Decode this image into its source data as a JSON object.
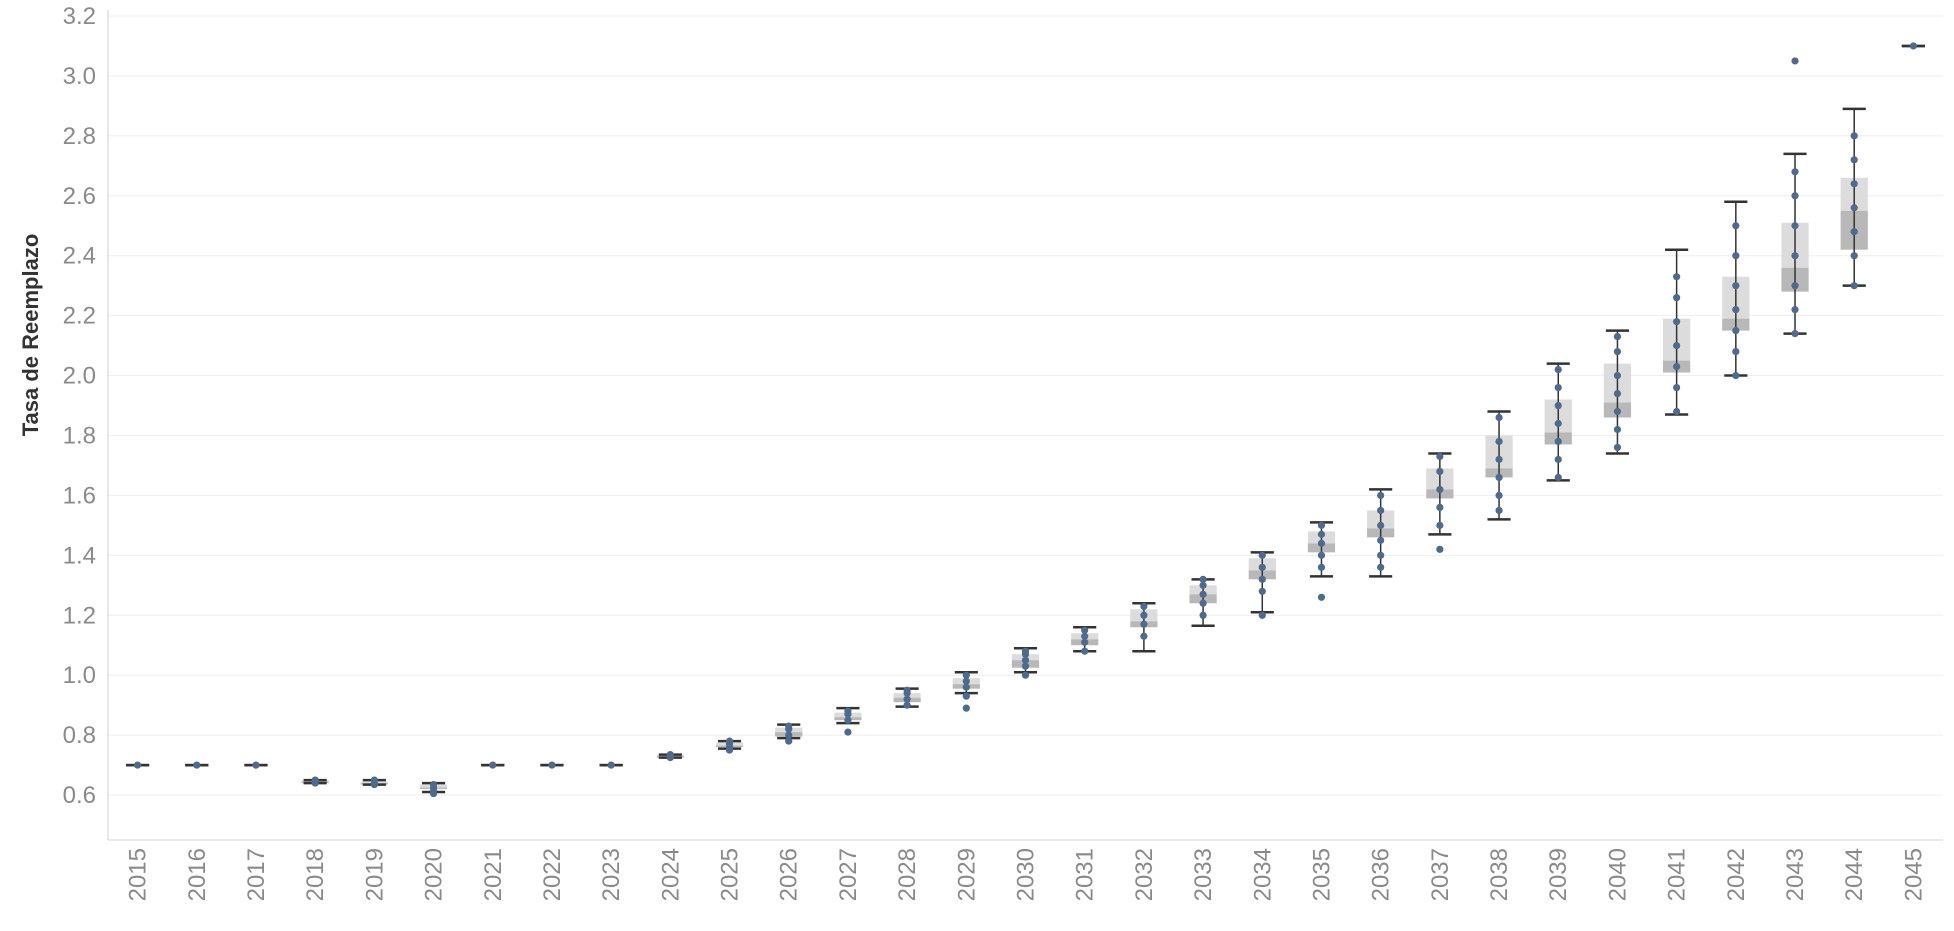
{
  "chart_data": {
    "type": "box",
    "xlabel": "",
    "ylabel": "Tasa de Reemplazo",
    "ylim": [
      0.45,
      3.22
    ],
    "yticks": [
      0.6,
      0.8,
      1.0,
      1.2,
      1.4,
      1.6,
      1.8,
      2.0,
      2.2,
      2.4,
      2.6,
      2.8,
      3.0,
      3.2
    ],
    "ytick_labels": [
      "0.6",
      "0.8",
      "1.0",
      "1.2",
      "1.4",
      "1.6",
      "1.8",
      "2.0",
      "2.2",
      "2.4",
      "2.6",
      "2.8",
      "3.0",
      "3.2"
    ],
    "categories": [
      "2015",
      "2016",
      "2017",
      "2018",
      "2019",
      "2020",
      "2021",
      "2022",
      "2023",
      "2024",
      "2025",
      "2026",
      "2027",
      "2028",
      "2029",
      "2030",
      "2031",
      "2032",
      "2033",
      "2034",
      "2035",
      "2036",
      "2037",
      "2038",
      "2039",
      "2040",
      "2041",
      "2042",
      "2043",
      "2044",
      "2045"
    ],
    "boxes": [
      {
        "year": "2015",
        "min": 0.7,
        "q1": 0.7,
        "median": 0.7,
        "q3": 0.7,
        "max": 0.7,
        "points": [
          0.7
        ]
      },
      {
        "year": "2016",
        "min": 0.7,
        "q1": 0.7,
        "median": 0.7,
        "q3": 0.7,
        "max": 0.7,
        "points": [
          0.7
        ]
      },
      {
        "year": "2017",
        "min": 0.7,
        "q1": 0.7,
        "median": 0.7,
        "q3": 0.7,
        "max": 0.7,
        "points": [
          0.7
        ]
      },
      {
        "year": "2018",
        "min": 0.64,
        "q1": 0.64,
        "median": 0.645,
        "q3": 0.65,
        "max": 0.65,
        "points": [
          0.64,
          0.645,
          0.65
        ]
      },
      {
        "year": "2019",
        "min": 0.635,
        "q1": 0.635,
        "median": 0.64,
        "q3": 0.645,
        "max": 0.65,
        "points": [
          0.635,
          0.64,
          0.65
        ]
      },
      {
        "year": "2020",
        "min": 0.61,
        "q1": 0.62,
        "median": 0.625,
        "q3": 0.635,
        "max": 0.64,
        "points": [
          0.605,
          0.615,
          0.625,
          0.635
        ]
      },
      {
        "year": "2021",
        "min": 0.7,
        "q1": 0.7,
        "median": 0.7,
        "q3": 0.7,
        "max": 0.7,
        "points": [
          0.7
        ]
      },
      {
        "year": "2022",
        "min": 0.7,
        "q1": 0.7,
        "median": 0.7,
        "q3": 0.7,
        "max": 0.7,
        "points": [
          0.7
        ]
      },
      {
        "year": "2023",
        "min": 0.7,
        "q1": 0.7,
        "median": 0.7,
        "q3": 0.7,
        "max": 0.7,
        "points": [
          0.7
        ]
      },
      {
        "year": "2024",
        "min": 0.725,
        "q1": 0.725,
        "median": 0.73,
        "q3": 0.735,
        "max": 0.735,
        "points": [
          0.725,
          0.73,
          0.735
        ]
      },
      {
        "year": "2025",
        "min": 0.755,
        "q1": 0.76,
        "median": 0.765,
        "q3": 0.775,
        "max": 0.78,
        "points": [
          0.75,
          0.76,
          0.77,
          0.78
        ]
      },
      {
        "year": "2026",
        "min": 0.79,
        "q1": 0.795,
        "median": 0.81,
        "q3": 0.825,
        "max": 0.835,
        "points": [
          0.78,
          0.8,
          0.82,
          0.83
        ]
      },
      {
        "year": "2027",
        "min": 0.84,
        "q1": 0.85,
        "median": 0.86,
        "q3": 0.875,
        "max": 0.89,
        "points": [
          0.81,
          0.85,
          0.87,
          0.88
        ]
      },
      {
        "year": "2028",
        "min": 0.895,
        "q1": 0.91,
        "median": 0.925,
        "q3": 0.94,
        "max": 0.955,
        "points": [
          0.9,
          0.92,
          0.94,
          0.95
        ]
      },
      {
        "year": "2029",
        "min": 0.94,
        "q1": 0.955,
        "median": 0.97,
        "q3": 0.99,
        "max": 1.01,
        "points": [
          0.89,
          0.93,
          0.96,
          0.98,
          1.0
        ]
      },
      {
        "year": "2030",
        "min": 1.01,
        "q1": 1.025,
        "median": 1.05,
        "q3": 1.07,
        "max": 1.09,
        "points": [
          1.0,
          1.03,
          1.05,
          1.07,
          1.08
        ]
      },
      {
        "year": "2031",
        "min": 1.08,
        "q1": 1.1,
        "median": 1.12,
        "q3": 1.14,
        "max": 1.16,
        "points": [
          1.08,
          1.11,
          1.13,
          1.15
        ]
      },
      {
        "year": "2032",
        "min": 1.08,
        "q1": 1.16,
        "median": 1.18,
        "q3": 1.22,
        "max": 1.24,
        "points": [
          1.13,
          1.17,
          1.2,
          1.23
        ]
      },
      {
        "year": "2033",
        "min": 1.165,
        "q1": 1.24,
        "median": 1.27,
        "q3": 1.3,
        "max": 1.32,
        "points": [
          1.2,
          1.24,
          1.27,
          1.3,
          1.32
        ]
      },
      {
        "year": "2034",
        "min": 1.21,
        "q1": 1.32,
        "median": 1.35,
        "q3": 1.39,
        "max": 1.41,
        "points": [
          1.2,
          1.28,
          1.32,
          1.36,
          1.4
        ]
      },
      {
        "year": "2035",
        "min": 1.33,
        "q1": 1.41,
        "median": 1.44,
        "q3": 1.48,
        "max": 1.51,
        "points": [
          1.26,
          1.36,
          1.4,
          1.44,
          1.47,
          1.5
        ]
      },
      {
        "year": "2036",
        "min": 1.33,
        "q1": 1.46,
        "median": 1.49,
        "q3": 1.55,
        "max": 1.62,
        "points": [
          1.36,
          1.4,
          1.45,
          1.5,
          1.55,
          1.6
        ]
      },
      {
        "year": "2037",
        "min": 1.47,
        "q1": 1.59,
        "median": 1.62,
        "q3": 1.69,
        "max": 1.74,
        "points": [
          1.42,
          1.5,
          1.56,
          1.62,
          1.68,
          1.73
        ]
      },
      {
        "year": "2038",
        "min": 1.52,
        "q1": 1.66,
        "median": 1.69,
        "q3": 1.8,
        "max": 1.88,
        "points": [
          1.55,
          1.6,
          1.66,
          1.72,
          1.78,
          1.86
        ]
      },
      {
        "year": "2039",
        "min": 1.65,
        "q1": 1.77,
        "median": 1.81,
        "q3": 1.92,
        "max": 2.04,
        "points": [
          1.66,
          1.72,
          1.78,
          1.84,
          1.9,
          1.96,
          2.02
        ]
      },
      {
        "year": "2040",
        "min": 1.74,
        "q1": 1.86,
        "median": 1.91,
        "q3": 2.04,
        "max": 2.15,
        "points": [
          1.76,
          1.82,
          1.88,
          1.94,
          2.0,
          2.08,
          2.13
        ]
      },
      {
        "year": "2041",
        "min": 1.87,
        "q1": 2.01,
        "median": 2.05,
        "q3": 2.19,
        "max": 2.42,
        "points": [
          1.88,
          1.96,
          2.03,
          2.1,
          2.18,
          2.26,
          2.33
        ]
      },
      {
        "year": "2042",
        "min": 2.0,
        "q1": 2.15,
        "median": 2.19,
        "q3": 2.33,
        "max": 2.58,
        "points": [
          2.0,
          2.08,
          2.15,
          2.22,
          2.3,
          2.4,
          2.5
        ]
      },
      {
        "year": "2043",
        "min": 2.14,
        "q1": 2.28,
        "median": 2.36,
        "q3": 2.51,
        "max": 2.74,
        "points": [
          2.14,
          2.22,
          2.3,
          2.4,
          2.5,
          2.6,
          2.68,
          3.05
        ]
      },
      {
        "year": "2044",
        "min": 2.3,
        "q1": 2.42,
        "median": 2.55,
        "q3": 2.66,
        "max": 2.89,
        "points": [
          2.3,
          2.4,
          2.48,
          2.56,
          2.64,
          2.72,
          2.8
        ]
      },
      {
        "year": "2045",
        "min": 3.1,
        "q1": 3.1,
        "median": 3.1,
        "q3": 3.1,
        "max": 3.1,
        "points": [
          3.1
        ]
      }
    ],
    "grid": true,
    "colors": {
      "point": "#4e6a8c",
      "whisker": "#333333",
      "box_upper": "#dcdcdc",
      "box_lower": "#b8b8b8",
      "grid": "#eeeeee",
      "axis": "#d0d0d0"
    }
  }
}
